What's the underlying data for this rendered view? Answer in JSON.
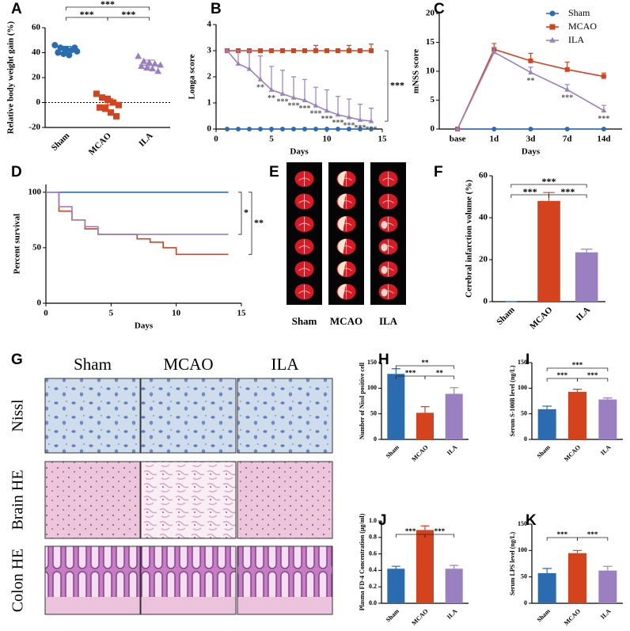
{
  "chart_data": [
    {
      "type": "dot",
      "label": "A",
      "ylabel": "Relative body weight gain (%)",
      "categories": [
        "Sham",
        "MCAO",
        "ILA"
      ],
      "values": [
        [
          46,
          44,
          43,
          42,
          41,
          40,
          39,
          38,
          44,
          42
        ],
        [
          7,
          4,
          2,
          0,
          -2,
          -4,
          -5,
          -8,
          -11,
          3
        ],
        [
          37,
          33,
          32,
          31,
          30,
          29,
          28,
          27,
          25
        ]
      ],
      "colors": [
        "#2b6cb0",
        "#d4421e",
        "#9a80c0"
      ],
      "markers": [
        "circle",
        "square",
        "triangle"
      ],
      "means": [
        42,
        -2,
        30
      ],
      "errors": [
        3,
        5,
        4
      ],
      "ylim": [
        -20,
        60
      ],
      "yticks": [
        -20,
        0,
        20,
        40,
        60
      ],
      "refline": 0,
      "brackets": [
        {
          "pair": [
            0,
            1
          ],
          "label": "***"
        },
        {
          "pair": [
            1,
            2
          ],
          "label": "***"
        },
        {
          "pair": [
            0,
            2
          ],
          "label": "***"
        }
      ]
    },
    {
      "type": "line",
      "label": "B",
      "xlabel": "Days",
      "ylabel": "Longa score",
      "x": [
        1,
        2,
        3,
        4,
        5,
        6,
        7,
        8,
        9,
        10,
        11,
        12,
        13,
        14
      ],
      "xlim": [
        0,
        15
      ],
      "xticks": [
        0,
        5,
        10,
        15
      ],
      "ylim": [
        0,
        4
      ],
      "yticks": [
        0,
        1,
        2,
        3,
        4
      ],
      "series": [
        {
          "color": "#2a6db5",
          "marker": "circle",
          "values": [
            0,
            0,
            0,
            0,
            0,
            0,
            0,
            0,
            0,
            0,
            0,
            0,
            0,
            0
          ],
          "errors": [
            0,
            0,
            0,
            0,
            0,
            0,
            0,
            0,
            0,
            0,
            0,
            0,
            0,
            0
          ]
        },
        {
          "color": "#d4421e",
          "marker": "square",
          "values": [
            3,
            3,
            3,
            3,
            3,
            3,
            3,
            3,
            3,
            3,
            3,
            3,
            3,
            3
          ],
          "errors": [
            0,
            0,
            0,
            0,
            0,
            0,
            0,
            0,
            0.2,
            0,
            0,
            0.2,
            0,
            0.25
          ]
        },
        {
          "color": "#9a80c0",
          "marker": "triangle",
          "values": [
            3,
            2.5,
            2.3,
            1.9,
            1.5,
            1.35,
            1.2,
            1.1,
            0.9,
            0.7,
            0.55,
            0.45,
            0.35,
            0.3
          ],
          "errors": [
            0,
            0.5,
            0.7,
            0.9,
            0.9,
            0.9,
            0.8,
            0.8,
            0.7,
            0.8,
            0.7,
            0.7,
            0.6,
            0.5
          ],
          "labels": [
            null,
            null,
            null,
            "**",
            "**",
            "***",
            "***",
            "***",
            "***",
            "***",
            "***",
            "***",
            "***",
            "***"
          ]
        }
      ],
      "brackets": [
        {
          "pair": [
            1,
            2
          ],
          "label": "***"
        }
      ]
    },
    {
      "type": "line",
      "label": "C",
      "xlabel": "Days",
      "ylabel": "mNSS score",
      "categories": [
        "base",
        "1d",
        "3d",
        "7d",
        "14d"
      ],
      "ylim": [
        0,
        20
      ],
      "yticks": [
        0,
        5,
        10,
        15,
        20
      ],
      "legend": "upper right",
      "series": [
        {
          "name": "Sham",
          "color": "#2a6db5",
          "marker": "circle",
          "values": [
            0,
            0,
            0,
            0,
            0
          ],
          "errors": [
            0,
            0,
            0,
            0,
            0
          ]
        },
        {
          "name": "MCAO",
          "color": "#d4421e",
          "marker": "square",
          "values": [
            0,
            13.8,
            11.8,
            10.3,
            9.1
          ],
          "errors": [
            0,
            1,
            1.3,
            1.3,
            0.6
          ]
        },
        {
          "name": "ILA",
          "color": "#9a80c0",
          "marker": "triangle",
          "values": [
            0,
            13.3,
            9.8,
            6.8,
            3.2
          ],
          "errors": [
            0,
            0.8,
            0.9,
            0.9,
            0.9
          ],
          "labels": [
            null,
            null,
            "**",
            "***",
            "***"
          ]
        }
      ]
    },
    {
      "type": "line",
      "step": true,
      "label": "D",
      "xlabel": "Days",
      "ylabel": "Percent survival",
      "xlim": [
        0,
        15
      ],
      "xticks": [
        0,
        5,
        10,
        15
      ],
      "ylim": [
        0,
        107
      ],
      "yticks": [
        0,
        50,
        100
      ],
      "series": [
        {
          "color": "#2a6db5",
          "x": [
            0,
            14
          ],
          "values": [
            100,
            100
          ]
        },
        {
          "color": "#d4421e",
          "x": [
            0,
            1,
            2,
            3,
            4,
            7,
            8,
            9,
            10,
            14
          ],
          "values": [
            100,
            83,
            75,
            67,
            62,
            58,
            55,
            50,
            44,
            44
          ]
        },
        {
          "color": "#9a80c0",
          "x": [
            0,
            1,
            2,
            3,
            4,
            14
          ],
          "values": [
            100,
            87,
            75,
            69,
            62,
            62
          ]
        }
      ],
      "brackets": [
        {
          "pair": [
            0,
            2
          ],
          "label": "*"
        },
        {
          "pair": [
            0,
            1
          ],
          "label": "**"
        }
      ]
    },
    {
      "type": "bar",
      "label": "F",
      "ylabel": "Cerebral infarction volume (%)",
      "categories": [
        "Sham",
        "MCAO",
        "ILA"
      ],
      "values": [
        0,
        48,
        23.5
      ],
      "errors": [
        0,
        4,
        1.5
      ],
      "colors": [
        "#2b6cb0",
        "#d4421e",
        "#9a80c0"
      ],
      "ylim": [
        0,
        60
      ],
      "yticks": [
        0,
        20,
        40,
        60
      ],
      "brackets": [
        {
          "pair": [
            0,
            1
          ],
          "label": "***"
        },
        {
          "pair": [
            1,
            2
          ],
          "label": "***"
        },
        {
          "pair": [
            0,
            2
          ],
          "label": "***"
        }
      ]
    },
    {
      "type": "bar",
      "label": "H",
      "ylabel": "Number of Nissl positive cell",
      "categories": [
        "Sham",
        "MCAO",
        "ILA"
      ],
      "values": [
        128,
        52,
        89
      ],
      "errors": [
        10,
        12,
        12
      ],
      "colors": [
        "#2b6cb0",
        "#d4421e",
        "#9a80c0"
      ],
      "ylim": [
        0,
        150
      ],
      "yticks": [
        0,
        50,
        100,
        150
      ],
      "brackets": [
        {
          "pair": [
            0,
            1
          ],
          "label": "***"
        },
        {
          "pair": [
            1,
            2
          ],
          "label": "**"
        },
        {
          "pair": [
            0,
            2
          ],
          "label": "**"
        }
      ]
    },
    {
      "type": "bar",
      "label": "I",
      "ylabel": "Serum S-100B level (ng/L)",
      "categories": [
        "Sham",
        "MCAO",
        "ILA"
      ],
      "values": [
        59,
        93,
        78
      ],
      "errors": [
        6,
        5,
        3
      ],
      "colors": [
        "#2b6cb0",
        "#d4421e",
        "#9a80c0"
      ],
      "ylim": [
        0,
        150
      ],
      "yticks": [
        0,
        50,
        100,
        150
      ],
      "brackets": [
        {
          "pair": [
            0,
            1
          ],
          "label": "***"
        },
        {
          "pair": [
            1,
            2
          ],
          "label": "***"
        },
        {
          "pair": [
            0,
            2
          ],
          "label": "***"
        }
      ]
    },
    {
      "type": "bar",
      "label": "J",
      "ylabel": "Plasma FD-4 Concentration (μg/ml)",
      "categories": [
        "Sham",
        "MCAO",
        "ILA"
      ],
      "values": [
        0.42,
        0.89,
        0.42
      ],
      "errors": [
        0.03,
        0.05,
        0.04
      ],
      "colors": [
        "#2b6cb0",
        "#d4421e",
        "#9a80c0"
      ],
      "ylim": [
        0,
        1
      ],
      "yticks": [
        {
          "value": 0,
          "label": "0.0"
        },
        0.2,
        0.4,
        0.6,
        0.8,
        {
          "value": 1,
          "label": "1.0"
        }
      ],
      "brackets": [
        {
          "pair": [
            0,
            1
          ],
          "label": "***"
        },
        {
          "pair": [
            1,
            2
          ],
          "label": "***"
        }
      ]
    },
    {
      "type": "bar",
      "label": "K",
      "ylabel": "Serum LPS level (ng/L)",
      "categories": [
        "Sham",
        "MCAO",
        "ILA"
      ],
      "values": [
        57,
        95,
        62
      ],
      "errors": [
        9,
        5,
        8
      ],
      "colors": [
        "#2b6cb0",
        "#d4421e",
        "#9a80c0"
      ],
      "ylim": [
        0,
        150
      ],
      "yticks": [
        0,
        50,
        100,
        150
      ],
      "brackets": [
        {
          "pair": [
            0,
            1
          ],
          "label": "***"
        },
        {
          "pair": [
            1,
            2
          ],
          "label": "***"
        }
      ]
    }
  ],
  "panel_e": {
    "label": "E",
    "groups": [
      "Sham",
      "MCAO",
      "ILA"
    ]
  },
  "panel_g": {
    "label": "G",
    "columns": [
      "Sham",
      "MCAO",
      "ILA"
    ],
    "rows": [
      "Nissl",
      "Brain HE",
      "Colon HE"
    ]
  }
}
